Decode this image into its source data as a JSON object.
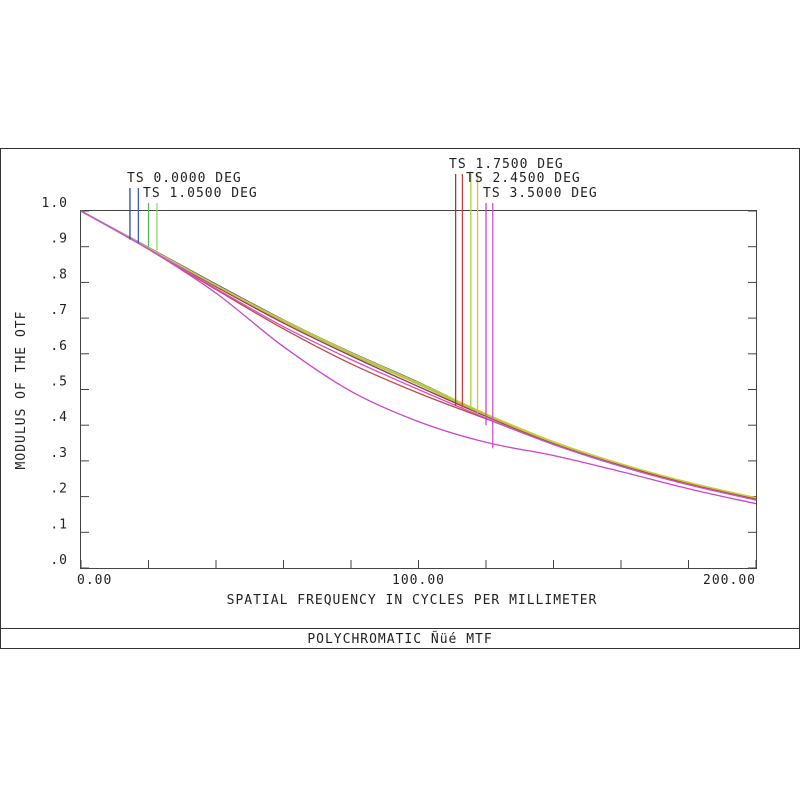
{
  "chart_data": {
    "type": "line",
    "title": "POLYCHROMATIC Ñüé  MTF",
    "xlabel": "SPATIAL FREQUENCY IN CYCLES PER MILLIMETER",
    "ylabel": "MODULUS OF THE OTF",
    "xlim": [
      0,
      200
    ],
    "ylim": [
      0,
      1.0
    ],
    "x_ticks": [
      0,
      20,
      40,
      60,
      80,
      100,
      120,
      140,
      160,
      180,
      200
    ],
    "x_tick_labels": [
      {
        "value": 0,
        "label": "0.00"
      },
      {
        "value": 100,
        "label": "100.00"
      },
      {
        "value": 200,
        "label": "200.00"
      }
    ],
    "y_tick_labels": [
      {
        "value": 1.0,
        "label": "1.0"
      },
      {
        "value": 0.9,
        "label": ".9"
      },
      {
        "value": 0.8,
        "label": ".8"
      },
      {
        "value": 0.7,
        "label": ".7"
      },
      {
        "value": 0.6,
        "label": ".6"
      },
      {
        "value": 0.5,
        "label": ".5"
      },
      {
        "value": 0.4,
        "label": ".4"
      },
      {
        "value": 0.3,
        "label": ".3"
      },
      {
        "value": 0.2,
        "label": ".2"
      },
      {
        "value": 0.1,
        "label": ".1"
      },
      {
        "value": 0.0,
        "label": ".0"
      }
    ],
    "legend": [
      {
        "label": "TS 0.0000 DEG",
        "markers": [
          {
            "color": "#3344aa",
            "x": 14.5,
            "y": 0.92
          },
          {
            "color": "#4455cc",
            "x": 17.0,
            "y": 0.91
          }
        ]
      },
      {
        "label": "TS 1.0500 DEG",
        "markers": [
          {
            "color": "#55bb55",
            "x": 20.0,
            "y": 0.9
          },
          {
            "color": "#88dd66",
            "x": 22.5,
            "y": 0.89
          }
        ]
      },
      {
        "label": "TS 1.7500 DEG",
        "markers": [
          {
            "color": "#aa3344",
            "x": 111.0,
            "y": 0.455
          },
          {
            "color": "#cc4444",
            "x": 113.0,
            "y": 0.45
          }
        ]
      },
      {
        "label": "TS 2.4500 DEG",
        "markers": [
          {
            "color": "#aacc44",
            "x": 115.5,
            "y": 0.445
          },
          {
            "color": "#cccc33",
            "x": 117.5,
            "y": 0.435
          }
        ]
      },
      {
        "label": "TS 3.5000 DEG",
        "markers": [
          {
            "color": "#cc44cc",
            "x": 120.0,
            "y": 0.4
          },
          {
            "color": "#cc55cc",
            "x": 122.0,
            "y": 0.335
          }
        ]
      }
    ],
    "series": [
      {
        "color": "#3344aa",
        "x": [
          0,
          20,
          40,
          60,
          80,
          100,
          120,
          140,
          160,
          180,
          200
        ],
        "y": [
          1.0,
          0.898,
          0.795,
          0.695,
          0.604,
          0.52,
          0.43,
          0.35,
          0.286,
          0.235,
          0.192
        ]
      },
      {
        "color": "#4455cc",
        "x": [
          0,
          20,
          40,
          60,
          80,
          100,
          120,
          140,
          160,
          180,
          200
        ],
        "y": [
          1.0,
          0.897,
          0.793,
          0.693,
          0.602,
          0.518,
          0.429,
          0.349,
          0.285,
          0.234,
          0.191
        ]
      },
      {
        "color": "#55bb55",
        "x": [
          0,
          20,
          40,
          60,
          80,
          100,
          120,
          140,
          160,
          180,
          200
        ],
        "y": [
          1.0,
          0.896,
          0.792,
          0.692,
          0.6,
          0.516,
          0.428,
          0.35,
          0.288,
          0.236,
          0.193
        ]
      },
      {
        "color": "#88dd66",
        "x": [
          0,
          20,
          40,
          60,
          80,
          100,
          120,
          140,
          160,
          180,
          200
        ],
        "y": [
          1.0,
          0.895,
          0.79,
          0.69,
          0.598,
          0.514,
          0.426,
          0.351,
          0.29,
          0.238,
          0.195
        ]
      },
      {
        "color": "#aa3344",
        "x": [
          0,
          20,
          40,
          60,
          80,
          100,
          120,
          140,
          160,
          180,
          200
        ],
        "y": [
          1.0,
          0.895,
          0.788,
          0.686,
          0.594,
          0.508,
          0.425,
          0.348,
          0.287,
          0.236,
          0.193
        ]
      },
      {
        "color": "#cc4444",
        "x": [
          0,
          20,
          40,
          60,
          80,
          100,
          120,
          140,
          160,
          180,
          200
        ],
        "y": [
          1.0,
          0.893,
          0.78,
          0.67,
          0.572,
          0.49,
          0.418,
          0.346,
          0.285,
          0.234,
          0.191
        ]
      },
      {
        "color": "#aacc44",
        "x": [
          0,
          20,
          40,
          60,
          80,
          100,
          120,
          140,
          160,
          180,
          200
        ],
        "y": [
          1.0,
          0.896,
          0.791,
          0.691,
          0.6,
          0.515,
          0.428,
          0.352,
          0.291,
          0.239,
          0.196
        ]
      },
      {
        "color": "#cccc33",
        "x": [
          0,
          20,
          40,
          60,
          80,
          100,
          120,
          140,
          160,
          180,
          200
        ],
        "y": [
          1.0,
          0.897,
          0.793,
          0.694,
          0.603,
          0.519,
          0.432,
          0.354,
          0.292,
          0.24,
          0.197
        ]
      },
      {
        "color": "#cc44cc",
        "x": [
          0,
          20,
          40,
          60,
          80,
          100,
          120,
          140,
          160,
          180,
          200
        ],
        "y": [
          1.0,
          0.893,
          0.77,
          0.62,
          0.495,
          0.41,
          0.352,
          0.315,
          0.27,
          0.222,
          0.18
        ]
      },
      {
        "color": "#cc55cc",
        "x": [
          0,
          20,
          40,
          60,
          80,
          100,
          120,
          140,
          160,
          180,
          200
        ],
        "y": [
          1.0,
          0.894,
          0.783,
          0.676,
          0.584,
          0.5,
          0.42,
          0.346,
          0.285,
          0.233,
          0.19
        ]
      }
    ]
  }
}
